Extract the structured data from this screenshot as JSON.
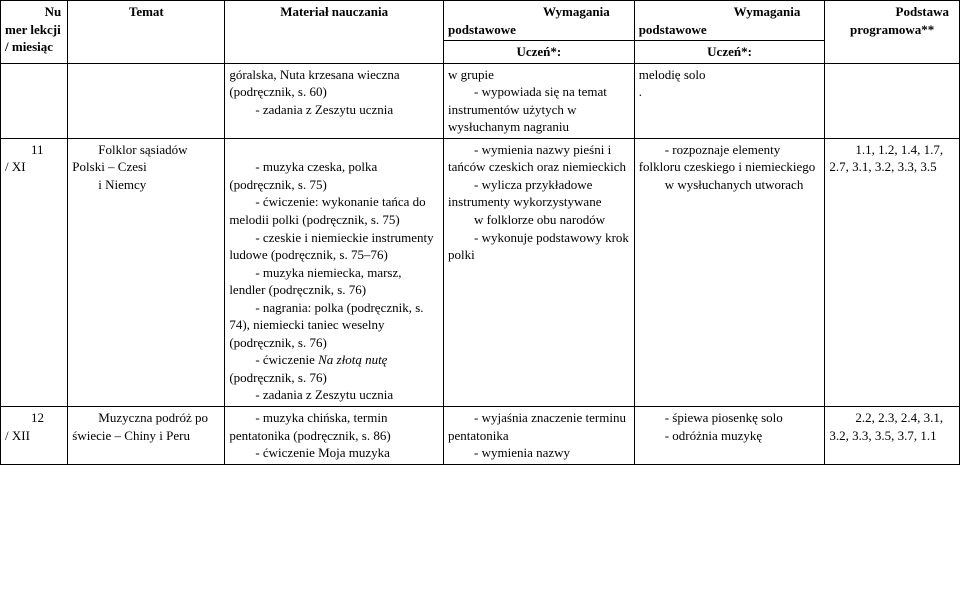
{
  "header": {
    "col1": "Nu\nmer lekcji / miesiąc",
    "col2": "Temat",
    "col3": "Materiał nauczania",
    "col4_title": "Wymagania podstawowe",
    "col4_sub": "Uczeń*:",
    "col5_title": "Wymagania podstawowe",
    "col5_sub": "Uczeń*:",
    "col6": "Podstawa programowa**"
  },
  "row_top": {
    "material": "góralska, Nuta krzesana wieczna (podręcznik, s. 60)\n        - zadania z Zeszytu ucznia",
    "req1": "w grupie\n        - wypowiada się na temat instrumentów użytych w wysłuchanym nagraniu",
    "req2": "melodię solo\n."
  },
  "row11": {
    "num": "        11\n/ XI",
    "topic": "        Folklor sąsiadów Polski – Czesi\n        i Niemcy",
    "material": "        - muzyka czeska, polka (podręcznik, s. 75)\n        - ćwiczenie: wykonanie tańca do melodii polki (podręcznik, s. 75)\n        - czeskie i niemieckie instrumenty ludowe (podręcznik, s. 75–76)\n        - muzyka niemiecka, marsz, lendler (podręcznik, s. 76)\n        - nagrania: polka (podręcznik, s. 74), niemiecki taniec weselny (podręcznik, s. 76)\n        - ćwiczenie Na złotą nutę (podręcznik, s. 76)\n        - zadania z Zeszytu ucznia",
    "req1": "        - wymienia nazwy pieśni i tańców czeskich oraz niemieckich\n        - wylicza przykładowe instrumenty wykorzystywane\n        w folklorze obu narodów\n        - wykonuje podstawowy krok polki",
    "req2": "        - rozpoznaje elementy folkloru czeskiego i niemieckiego\n        w wysłuchanych utworach",
    "base": "        1.1, 1.2, 1.4, 1.7, 2.7, 3.1, 3.2, 3.3, 3.5"
  },
  "row12": {
    "num": "        12\n/ XII",
    "topic": "        Muzyczna podróż po świecie – Chiny i Peru",
    "material": "        - muzyka chińska, termin pentatonika (podręcznik, s. 86)\n        - ćwiczenie Moja muzyka",
    "req1": "        - wyjaśnia znaczenie terminu pentatonika\n        - wymienia nazwy",
    "req2": "        - śpiewa piosenkę solo\n        - odróżnia muzykę",
    "base": "        2.2, 2.3, 2.4, 3.1, 3.2, 3.3, 3.5, 3.7, 1.1"
  },
  "italic": {
    "na_zlota_nute": "Na złotą nutę"
  }
}
